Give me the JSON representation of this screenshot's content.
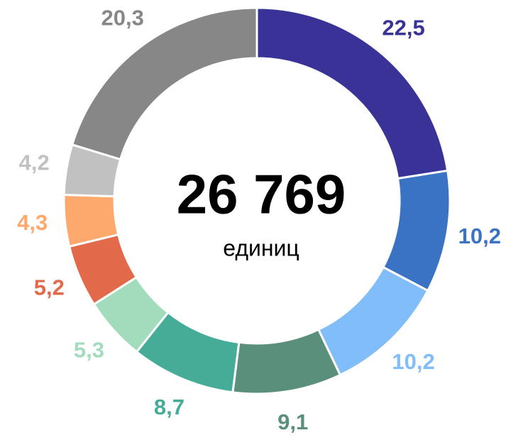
{
  "chart_data": {
    "type": "donut",
    "center_label": "26 769",
    "center_sublabel": "единиц",
    "values": [
      22.5,
      10.2,
      10.2,
      9.1,
      8.7,
      5.3,
      5.2,
      4.3,
      4.2,
      20.3
    ],
    "value_labels": [
      "22,5",
      "10,2",
      "10,2",
      "9,1",
      "8,7",
      "5,3",
      "5,2",
      "4,3",
      "4,2",
      "20,3"
    ],
    "colors": [
      "#3a3397",
      "#3a73c4",
      "#80bdf9",
      "#5a8f7b",
      "#45ad97",
      "#a3dcbd",
      "#e2694a",
      "#fda96e",
      "#c1c1c1",
      "#878787"
    ]
  }
}
